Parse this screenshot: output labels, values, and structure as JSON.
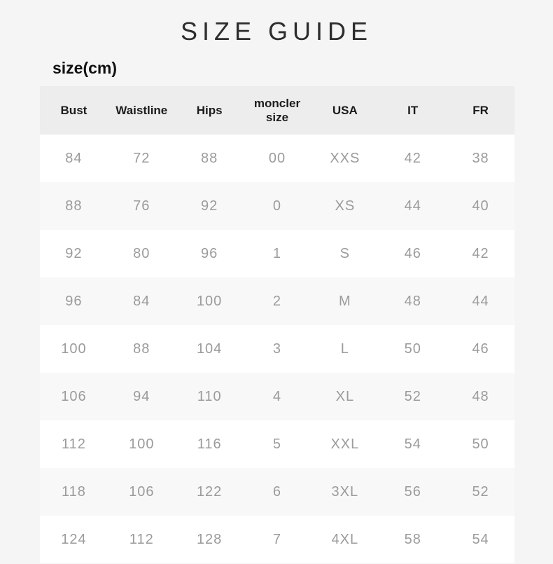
{
  "page": {
    "title": "SIZE GUIDE",
    "unit_label": "size(cm)"
  },
  "table": {
    "columns": [
      "Bust",
      "Waistline",
      "Hips",
      "moncler size",
      "USA",
      "IT",
      "FR"
    ],
    "rows": [
      [
        "84",
        "72",
        "88",
        "00",
        "XXS",
        "42",
        "38"
      ],
      [
        "88",
        "76",
        "92",
        "0",
        "XS",
        "44",
        "40"
      ],
      [
        "92",
        "80",
        "96",
        "1",
        "S",
        "46",
        "42"
      ],
      [
        "96",
        "84",
        "100",
        "2",
        "M",
        "48",
        "44"
      ],
      [
        "100",
        "88",
        "104",
        "3",
        "L",
        "50",
        "46"
      ],
      [
        "106",
        "94",
        "110",
        "4",
        "XL",
        "52",
        "48"
      ],
      [
        "112",
        "100",
        "116",
        "5",
        "XXL",
        "54",
        "50"
      ],
      [
        "118",
        "106",
        "122",
        "6",
        "3XL",
        "56",
        "52"
      ],
      [
        "124",
        "112",
        "128",
        "7",
        "4XL",
        "58",
        "54"
      ]
    ]
  },
  "colors": {
    "page_background": "#f5f5f5",
    "header_background": "#ededed",
    "row_background": "#ffffff",
    "alt_row_background": "#f8f8f8",
    "header_text": "#1b1b1b",
    "cell_text": "#9b9b9b",
    "title_text": "#2d2d2d"
  }
}
